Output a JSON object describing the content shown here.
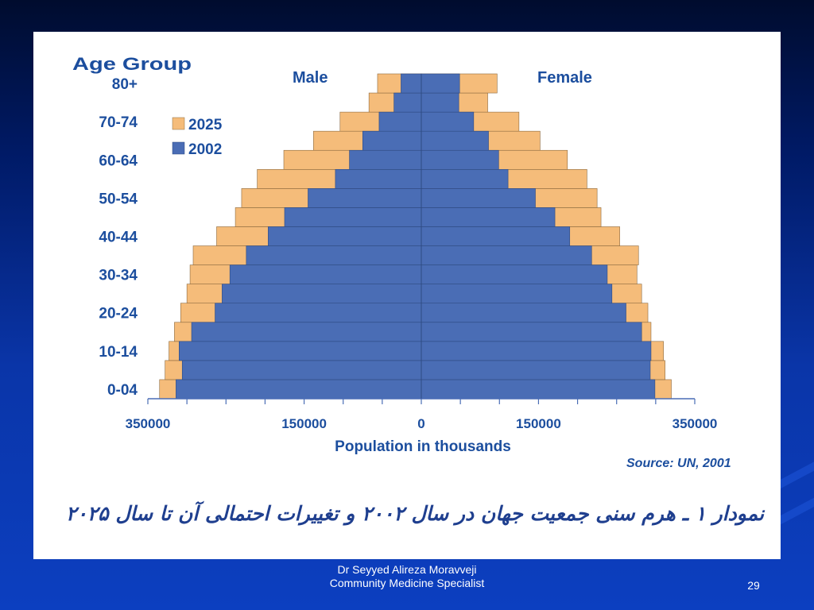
{
  "slide": {
    "caption": "نمودار ۱ ـ هرم سنی جمعیت جهان در سال ۲۰۰۲ و تغییرات احتمالی آن تا سال ۲۰۲۵",
    "footer_line1": "Dr Seyyed Alireza Moravveji",
    "footer_line2": "Community Medicine Specialist",
    "page_number": "29"
  },
  "chart_data": {
    "type": "bar",
    "orientation": "horizontal-population-pyramid",
    "ylabel": "Age Group",
    "xlabel": "Population in thousands",
    "source": "Source: UN, 2001",
    "side_labels": {
      "left": "Male",
      "right": "Female"
    },
    "y_tick_labels": [
      "0-04",
      "10-14",
      "20-24",
      "30-34",
      "40-44",
      "50-54",
      "60-64",
      "70-74",
      "80+"
    ],
    "x_tick_labels": [
      "350000",
      "150000",
      "0",
      "150000",
      "350000"
    ],
    "xlim": [
      -350000,
      350000
    ],
    "legend_position": "top-left",
    "categories": [
      "0-4",
      "5-9",
      "10-14",
      "15-19",
      "20-24",
      "25-29",
      "30-34",
      "35-39",
      "40-44",
      "45-49",
      "50-54",
      "55-59",
      "60-64",
      "65-69",
      "70-74",
      "75-79",
      "80+"
    ],
    "series": [
      {
        "name": "2025",
        "color": "#f5bc7a",
        "male": [
          335000,
          328000,
          323000,
          316000,
          308000,
          300000,
          296000,
          292000,
          262000,
          238000,
          230000,
          210000,
          176000,
          138000,
          104000,
          67000,
          56000
        ],
        "female": [
          320000,
          312000,
          310000,
          294000,
          290000,
          282000,
          276000,
          278000,
          254000,
          230000,
          225000,
          212000,
          187000,
          152000,
          125000,
          85000,
          97000
        ]
      },
      {
        "name": "2002",
        "color": "#4a6db5",
        "male": [
          314000,
          306000,
          310000,
          294000,
          264000,
          255000,
          245000,
          224000,
          196000,
          175000,
          145000,
          110000,
          92000,
          75000,
          54000,
          35000,
          26000
        ],
        "female": [
          299000,
          293000,
          294000,
          282000,
          262000,
          244000,
          238000,
          218000,
          190000,
          171000,
          146000,
          111000,
          99000,
          86000,
          67000,
          48000,
          49000
        ]
      }
    ]
  }
}
